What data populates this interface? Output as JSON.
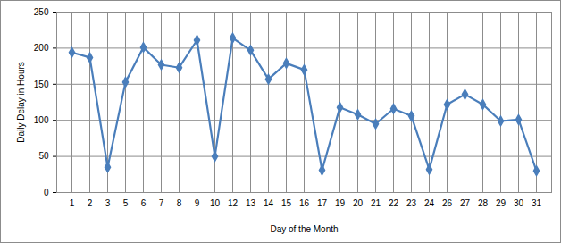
{
  "chart_data": {
    "type": "line",
    "x_label": "Day of the Month",
    "y_label": "Daily Delay in Hours",
    "categories": [
      "1",
      "2",
      "3",
      "5",
      "6",
      "7",
      "8",
      "9",
      "10",
      "12",
      "13",
      "14",
      "15",
      "16",
      "17",
      "19",
      "20",
      "21",
      "22",
      "23",
      "24",
      "26",
      "27",
      "28",
      "29",
      "30",
      "31"
    ],
    "values": [
      194,
      187,
      35,
      153,
      201,
      177,
      173,
      211,
      50,
      214,
      197,
      157,
      179,
      170,
      31,
      118,
      108,
      95,
      116,
      106,
      32,
      122,
      136,
      122,
      99,
      101,
      30
    ],
    "color": "#4a7ebb",
    "marker": "diamond",
    "ylim": [
      0,
      250
    ],
    "yticks": [
      0,
      50,
      100,
      150,
      200,
      250
    ],
    "grid": true
  }
}
